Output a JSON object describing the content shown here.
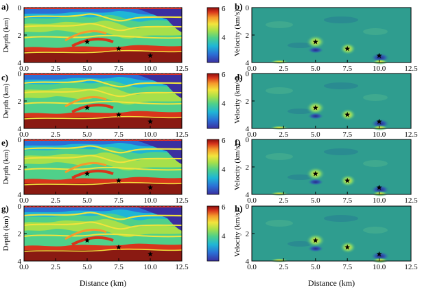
{
  "colorbar": {
    "ticks": [
      "6",
      "4"
    ],
    "label": "Velocity (km/s)",
    "colormap": [
      "#3b2fa0",
      "#2b6fd6",
      "#1fb6d6",
      "#4fd08a",
      "#a7e04a",
      "#f2e43c",
      "#f59a2c",
      "#d8351c",
      "#8a0d0d"
    ]
  },
  "axes": {
    "xticks": [
      "0.0",
      "2.5",
      "5.0",
      "7.5",
      "10.0",
      "12.5"
    ],
    "yticks": [
      "0",
      "2",
      "4"
    ],
    "left_ylabel": "Depth (km)",
    "xlabel": "Distance (km)"
  },
  "panels": [
    {
      "label": "a)",
      "side": "model"
    },
    {
      "label": "b)",
      "side": "image"
    },
    {
      "label": "c)",
      "side": "model"
    },
    {
      "label": "d)",
      "side": "image"
    },
    {
      "label": "e)",
      "side": "model"
    },
    {
      "label": "f)",
      "side": "image"
    },
    {
      "label": "g)",
      "side": "model"
    },
    {
      "label": "h)",
      "side": "image"
    }
  ],
  "stars": [
    {
      "x": 5.0,
      "depth": 2.5
    },
    {
      "x": 7.5,
      "depth": 3.0
    },
    {
      "x": 10.0,
      "depth": 3.5
    }
  ],
  "chart_data": {
    "type": "heatmap",
    "x_range": [
      0,
      12.5
    ],
    "depth_range": [
      0,
      4
    ],
    "color_range": [
      3,
      6
    ],
    "markers": [
      [
        5.0,
        2.5
      ],
      [
        7.5,
        3.0
      ],
      [
        10.0,
        3.5
      ]
    ]
  }
}
